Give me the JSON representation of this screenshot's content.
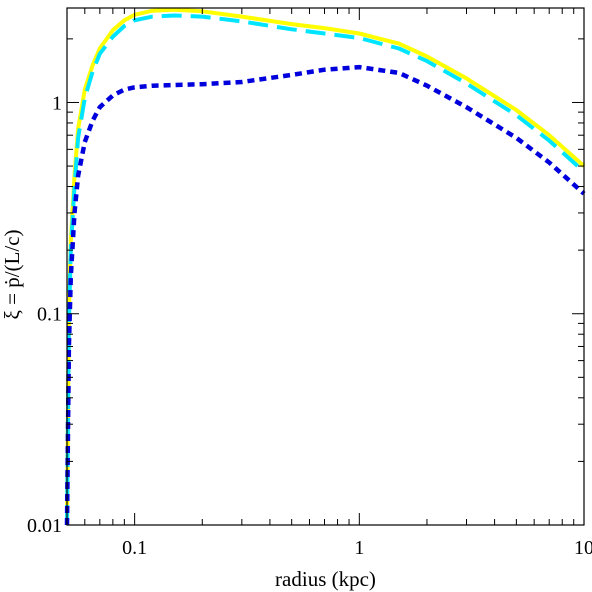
{
  "chart_data": {
    "type": "line",
    "xlabel": "radius (kpc)",
    "ylabel": "ξ = ṗ/(L/c)",
    "x_scale": "log",
    "y_scale": "log",
    "xlim": [
      0.05,
      10
    ],
    "ylim": [
      0.01,
      2.8
    ],
    "grid": false,
    "x_ticks": [
      {
        "value": 0.1,
        "label": "0.1"
      },
      {
        "value": 1,
        "label": "1"
      },
      {
        "value": 10,
        "label": "10"
      }
    ],
    "y_ticks": [
      {
        "value": 0.01,
        "label": "0.01"
      },
      {
        "value": 0.1,
        "label": "0.1"
      },
      {
        "value": 1,
        "label": "1"
      }
    ],
    "series": [
      {
        "color": "#ffff00",
        "line_style": "solid",
        "x": [
          0.05,
          0.051,
          0.052,
          0.054,
          0.056,
          0.06,
          0.065,
          0.07,
          0.08,
          0.09,
          0.1,
          0.12,
          0.15,
          0.2,
          0.3,
          0.5,
          0.7,
          1.0,
          1.5,
          2.0,
          3.0,
          5.0,
          7.0,
          10.0
        ],
        "y": [
          0.01,
          0.1,
          0.22,
          0.45,
          0.75,
          1.15,
          1.5,
          1.8,
          2.2,
          2.45,
          2.6,
          2.72,
          2.75,
          2.7,
          2.55,
          2.35,
          2.25,
          2.12,
          1.9,
          1.65,
          1.3,
          0.92,
          0.7,
          0.5
        ]
      },
      {
        "color": "#00e5ff",
        "line_style": "dashed",
        "x": [
          0.05,
          0.051,
          0.052,
          0.054,
          0.056,
          0.06,
          0.065,
          0.07,
          0.08,
          0.09,
          0.1,
          0.12,
          0.15,
          0.2,
          0.3,
          0.5,
          0.7,
          1.0,
          1.5,
          2.0,
          3.0,
          5.0,
          7.0,
          10.0
        ],
        "y": [
          0.01,
          0.09,
          0.2,
          0.4,
          0.68,
          1.05,
          1.4,
          1.7,
          2.05,
          2.3,
          2.45,
          2.55,
          2.58,
          2.55,
          2.42,
          2.22,
          2.12,
          2.02,
          1.8,
          1.57,
          1.23,
          0.87,
          0.66,
          0.47
        ]
      },
      {
        "color": "#0000dd",
        "line_style": "dotted",
        "x": [
          0.05,
          0.051,
          0.052,
          0.054,
          0.056,
          0.06,
          0.065,
          0.07,
          0.08,
          0.09,
          0.1,
          0.12,
          0.15,
          0.2,
          0.3,
          0.5,
          0.7,
          1.0,
          1.5,
          2.0,
          3.0,
          5.0,
          7.0,
          10.0
        ],
        "y": [
          0.01,
          0.07,
          0.15,
          0.3,
          0.45,
          0.65,
          0.82,
          0.95,
          1.08,
          1.15,
          1.18,
          1.2,
          1.21,
          1.22,
          1.25,
          1.35,
          1.43,
          1.47,
          1.38,
          1.2,
          0.95,
          0.68,
          0.52,
          0.37
        ]
      }
    ]
  }
}
